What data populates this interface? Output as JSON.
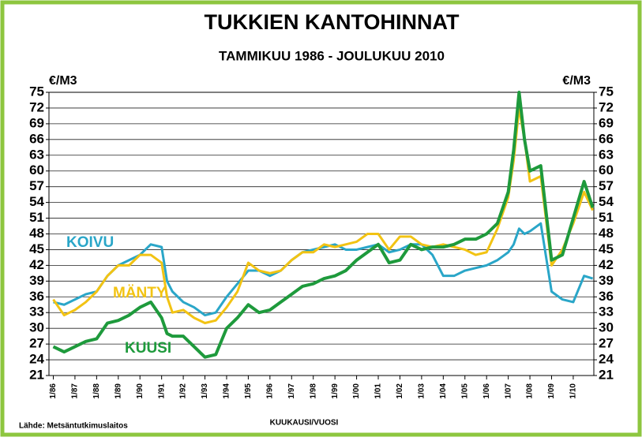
{
  "chart_data": {
    "type": "line",
    "title": "TUKKIEN KANTOHINNAT",
    "subtitle": "TAMMIKUU 1986 - JOULUKUU 2010",
    "y_label": "€/M3",
    "y2_label": "€/M3",
    "x_label": "KUUKAUSI/VUOSI",
    "source": "Lähde: Metsäntutkimuslaitos",
    "x": [
      1986,
      1986.5,
      1987,
      1987.5,
      1988,
      1988.5,
      1989,
      1989.5,
      1990,
      1990.5,
      1991,
      1991.25,
      1991.5,
      1992,
      1992.5,
      1993,
      1993.5,
      1994,
      1994.5,
      1995,
      1995.5,
      1996,
      1996.5,
      1997,
      1997.5,
      1998,
      1998.5,
      1999,
      1999.5,
      2000,
      2000.5,
      2001,
      2001.5,
      2002,
      2002.5,
      2003,
      2003.5,
      2004,
      2004.5,
      2005,
      2005.5,
      2006,
      2006.5,
      2007,
      2007.25,
      2007.5,
      2007.75,
      2008,
      2008.5,
      2009,
      2009.5,
      2010,
      2010.5,
      2010.9
    ],
    "series": [
      {
        "name": "KOIVU",
        "color": "#2aa6c8",
        "values": [
          35,
          34.5,
          35.5,
          36.5,
          37,
          40,
          42,
          43,
          44,
          46,
          45.5,
          39,
          37,
          35,
          34,
          32.5,
          33,
          36,
          38.5,
          41,
          41,
          40,
          41,
          43,
          44.5,
          45,
          45.5,
          46,
          45,
          45,
          45.5,
          46,
          44.5,
          45,
          46,
          46,
          44,
          40,
          40,
          41,
          41.5,
          42,
          43,
          44.5,
          46,
          49,
          48,
          48.5,
          50,
          37,
          35.5,
          35,
          40,
          39.5
        ]
      },
      {
        "name": "MÄNTY",
        "color": "#f2c313",
        "values": [
          35.5,
          32.5,
          33.5,
          35,
          37,
          40,
          42,
          42,
          44,
          44,
          42.5,
          36,
          33,
          33.5,
          32,
          31,
          31.5,
          34,
          37,
          42.5,
          41,
          40.5,
          41,
          43,
          44.5,
          44.5,
          46,
          45.5,
          46,
          46.5,
          48,
          48,
          45,
          47.5,
          47.5,
          46,
          45.5,
          46,
          45.5,
          45,
          44,
          44.5,
          49,
          55,
          62,
          72,
          66,
          58,
          59,
          42,
          45,
          50,
          56,
          52.5
        ]
      },
      {
        "name": "KUUSI",
        "color": "#1e9a3c",
        "values": [
          26.5,
          25.5,
          26.5,
          27.5,
          28,
          31,
          31.5,
          32.5,
          34,
          35,
          32,
          29,
          28.5,
          28.5,
          26.5,
          24.5,
          25,
          30,
          32,
          34.5,
          33,
          33.5,
          35,
          36.5,
          38,
          38.5,
          39.5,
          40,
          41,
          43,
          44.5,
          46,
          42.5,
          43,
          46,
          45,
          45.5,
          45.5,
          46,
          47,
          47,
          48,
          50,
          56,
          64,
          75,
          66,
          60,
          61,
          43,
          44,
          51,
          58,
          53
        ]
      }
    ],
    "xlim": [
      1985.8,
      2010.95
    ],
    "xticks": [
      {
        "value": 1986,
        "label": "1/86"
      },
      {
        "value": 1987,
        "label": "1/87"
      },
      {
        "value": 1988,
        "label": "1/88"
      },
      {
        "value": 1989,
        "label": "1/89"
      },
      {
        "value": 1990,
        "label": "1/90"
      },
      {
        "value": 1991,
        "label": "1/91"
      },
      {
        "value": 1992,
        "label": "1/92"
      },
      {
        "value": 1993,
        "label": "1/93"
      },
      {
        "value": 1994,
        "label": "1/94"
      },
      {
        "value": 1995,
        "label": "1/95"
      },
      {
        "value": 1996,
        "label": "1/96"
      },
      {
        "value": 1997,
        "label": "1/97"
      },
      {
        "value": 1998,
        "label": "1/98"
      },
      {
        "value": 1999,
        "label": "1/99"
      },
      {
        "value": 2000,
        "label": "1/00"
      },
      {
        "value": 2001,
        "label": "1/01"
      },
      {
        "value": 2002,
        "label": "1/02"
      },
      {
        "value": 2003,
        "label": "1/03"
      },
      {
        "value": 2004,
        "label": "1/04"
      },
      {
        "value": 2005,
        "label": "1/05"
      },
      {
        "value": 2006,
        "label": "1/06"
      },
      {
        "value": 2007,
        "label": "1/07"
      },
      {
        "value": 2008,
        "label": "1/08"
      },
      {
        "value": 2009,
        "label": "1/09"
      },
      {
        "value": 2010,
        "label": "1/10"
      }
    ],
    "ylim": [
      21,
      75
    ],
    "yticks": [
      21,
      24,
      27,
      30,
      33,
      36,
      39,
      42,
      45,
      48,
      51,
      54,
      57,
      60,
      63,
      66,
      69,
      72,
      75
    ],
    "y2lim": [
      21,
      75
    ],
    "y2ticks": [
      21,
      24,
      27,
      30,
      33,
      36,
      39,
      42,
      45,
      48,
      51,
      54,
      57,
      60,
      63,
      66,
      69,
      72,
      75
    ],
    "grid": true
  }
}
